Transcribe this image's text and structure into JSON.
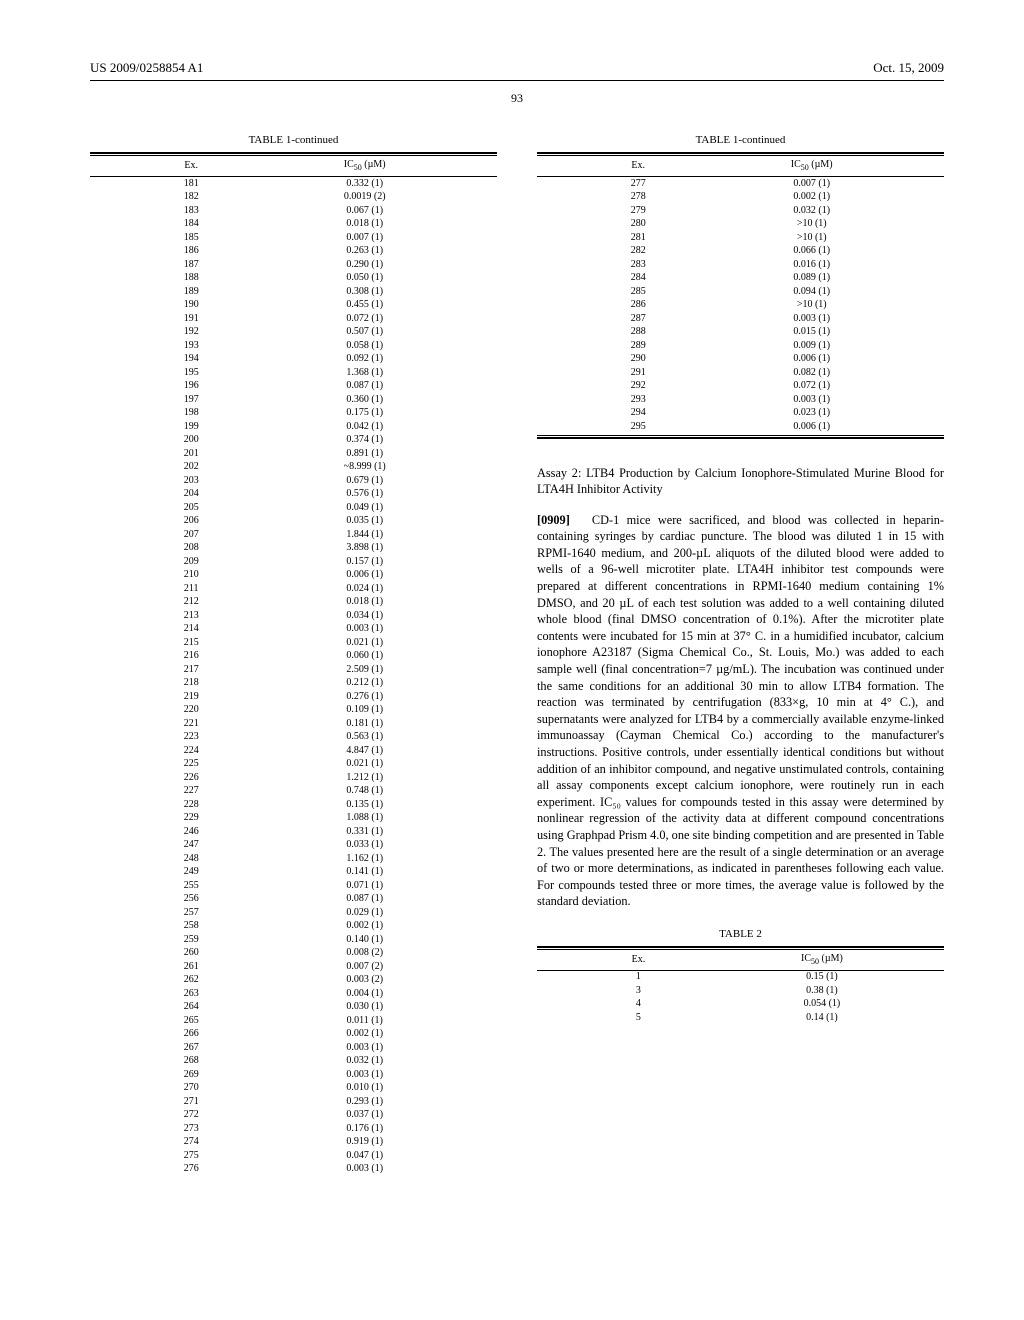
{
  "header": {
    "left": "US 2009/0258854 A1",
    "right": "Oct. 15, 2009"
  },
  "page_number": "93",
  "table1_left": {
    "title": "TABLE 1-continued",
    "col1": "Ex.",
    "col2_prefix": "IC",
    "col2_sub": "50",
    "col2_suffix": " (µM)",
    "rows": [
      [
        "181",
        "0.332 (1)"
      ],
      [
        "182",
        "0.0019 (2)"
      ],
      [
        "183",
        "0.067 (1)"
      ],
      [
        "184",
        "0.018 (1)"
      ],
      [
        "185",
        "0.007 (1)"
      ],
      [
        "186",
        "0.263 (1)"
      ],
      [
        "187",
        "0.290 (1)"
      ],
      [
        "188",
        "0.050 (1)"
      ],
      [
        "189",
        "0.308 (1)"
      ],
      [
        "190",
        "0.455 (1)"
      ],
      [
        "191",
        "0.072 (1)"
      ],
      [
        "192",
        "0.507 (1)"
      ],
      [
        "193",
        "0.058 (1)"
      ],
      [
        "194",
        "0.092 (1)"
      ],
      [
        "195",
        "1.368 (1)"
      ],
      [
        "196",
        "0.087 (1)"
      ],
      [
        "197",
        "0.360 (1)"
      ],
      [
        "198",
        "0.175 (1)"
      ],
      [
        "199",
        "0.042 (1)"
      ],
      [
        "200",
        "0.374 (1)"
      ],
      [
        "201",
        "0.891 (1)"
      ],
      [
        "202",
        "~8.999 (1)"
      ],
      [
        "203",
        "0.679 (1)"
      ],
      [
        "204",
        "0.576 (1)"
      ],
      [
        "205",
        "0.049 (1)"
      ],
      [
        "206",
        "0.035 (1)"
      ],
      [
        "207",
        "1.844 (1)"
      ],
      [
        "208",
        "3.898 (1)"
      ],
      [
        "209",
        "0.157 (1)"
      ],
      [
        "210",
        "0.006 (1)"
      ],
      [
        "211",
        "0.024 (1)"
      ],
      [
        "212",
        "0.018 (1)"
      ],
      [
        "213",
        "0.034 (1)"
      ],
      [
        "214",
        "0.003 (1)"
      ],
      [
        "215",
        "0.021 (1)"
      ],
      [
        "216",
        "0.060 (1)"
      ],
      [
        "217",
        "2.509 (1)"
      ],
      [
        "218",
        "0.212 (1)"
      ],
      [
        "219",
        "0.276 (1)"
      ],
      [
        "220",
        "0.109 (1)"
      ],
      [
        "221",
        "0.181 (1)"
      ],
      [
        "223",
        "0.563 (1)"
      ],
      [
        "224",
        "4.847 (1)"
      ],
      [
        "225",
        "0.021 (1)"
      ],
      [
        "226",
        "1.212 (1)"
      ],
      [
        "227",
        "0.748 (1)"
      ],
      [
        "228",
        "0.135 (1)"
      ],
      [
        "229",
        "1.088 (1)"
      ],
      [
        "246",
        "0.331 (1)"
      ],
      [
        "247",
        "0.033 (1)"
      ],
      [
        "248",
        "1.162 (1)"
      ],
      [
        "249",
        "0.141 (1)"
      ],
      [
        "255",
        "0.071 (1)"
      ],
      [
        "256",
        "0.087 (1)"
      ],
      [
        "257",
        "0.029 (1)"
      ],
      [
        "258",
        "0.002 (1)"
      ],
      [
        "259",
        "0.140 (1)"
      ],
      [
        "260",
        "0.008 (2)"
      ],
      [
        "261",
        "0.007 (2)"
      ],
      [
        "262",
        "0.003 (2)"
      ],
      [
        "263",
        "0.004 (1)"
      ],
      [
        "264",
        "0.030 (1)"
      ],
      [
        "265",
        "0.011 (1)"
      ],
      [
        "266",
        "0.002 (1)"
      ],
      [
        "267",
        "0.003 (1)"
      ],
      [
        "268",
        "0.032 (1)"
      ],
      [
        "269",
        "0.003 (1)"
      ],
      [
        "270",
        "0.010 (1)"
      ],
      [
        "271",
        "0.293 (1)"
      ],
      [
        "272",
        "0.037 (1)"
      ],
      [
        "273",
        "0.176 (1)"
      ],
      [
        "274",
        "0.919 (1)"
      ],
      [
        "275",
        "0.047 (1)"
      ],
      [
        "276",
        "0.003 (1)"
      ]
    ]
  },
  "table1_right": {
    "title": "TABLE 1-continued",
    "col1": "Ex.",
    "col2_prefix": "IC",
    "col2_sub": "50",
    "col2_suffix": " (µM)",
    "rows": [
      [
        "277",
        "0.007 (1)"
      ],
      [
        "278",
        "0.002 (1)"
      ],
      [
        "279",
        "0.032 (1)"
      ],
      [
        "280",
        ">10 (1)"
      ],
      [
        "281",
        ">10 (1)"
      ],
      [
        "282",
        "0.066 (1)"
      ],
      [
        "283",
        "0.016 (1)"
      ],
      [
        "284",
        "0.089 (1)"
      ],
      [
        "285",
        "0.094 (1)"
      ],
      [
        "286",
        ">10 (1)"
      ],
      [
        "287",
        "0.003 (1)"
      ],
      [
        "288",
        "0.015 (1)"
      ],
      [
        "289",
        "0.009 (1)"
      ],
      [
        "290",
        "0.006 (1)"
      ],
      [
        "291",
        "0.082 (1)"
      ],
      [
        "292",
        "0.072 (1)"
      ],
      [
        "293",
        "0.003 (1)"
      ],
      [
        "294",
        "0.023 (1)"
      ],
      [
        "295",
        "0.006 (1)"
      ]
    ]
  },
  "assay_heading": "Assay 2: LTB4 Production by Calcium Ionophore-Stimulated Murine Blood for LTA4H Inhibitor Activity",
  "para_number": "[0909]",
  "body_text": "CD-1 mice were sacrificed, and blood was collected in heparin-containing syringes by cardiac puncture. The blood was diluted 1 in 15 with RPMI-1640 medium, and 200-µL aliquots of the diluted blood were added to wells of a 96-well microtiter plate. LTA4H inhibitor test compounds were prepared at different concentrations in RPMI-1640 medium containing 1% DMSO, and 20 µL of each test solution was added to a well containing diluted whole blood (final DMSO concentration of 0.1%). After the microtiter plate contents were incubated for 15 min at 37° C. in a humidified incubator, calcium ionophore A23187 (Sigma Chemical Co., St. Louis, Mo.) was added to each sample well (final concentration=7 µg/mL). The incubation was continued under the same conditions for an additional 30 min to allow LTB4 formation. The reaction was terminated by centrifugation (833×g, 10 min at 4° C.), and supernatants were analyzed for LTB4 by a commercially available enzyme-linked immunoassay (Cayman Chemical Co.) according to the manufacturer's instructions. Positive controls, under essentially identical conditions but without addition of an inhibitor compound, and negative unstimulated controls, containing all assay components except calcium ionophore, were routinely run in each experiment. IC₅₀ values for compounds tested in this assay were determined by nonlinear regression of the activity data at different compound concentrations using Graphpad Prism 4.0, one site binding competition and are presented in Table 2. The values presented here are the result of a single determination or an average of two or more determinations, as indicated in parentheses following each value. For compounds tested three or more times, the average value is followed by the standard deviation.",
  "table2": {
    "title": "TABLE 2",
    "col1": "Ex.",
    "col2_prefix": "IC",
    "col2_sub": "50",
    "col2_suffix": " (µM)",
    "rows": [
      [
        "1",
        "0.15 (1)"
      ],
      [
        "3",
        "0.38 (1)"
      ],
      [
        "4",
        "0.054 (1)"
      ],
      [
        "5",
        "0.14 (1)"
      ]
    ]
  }
}
